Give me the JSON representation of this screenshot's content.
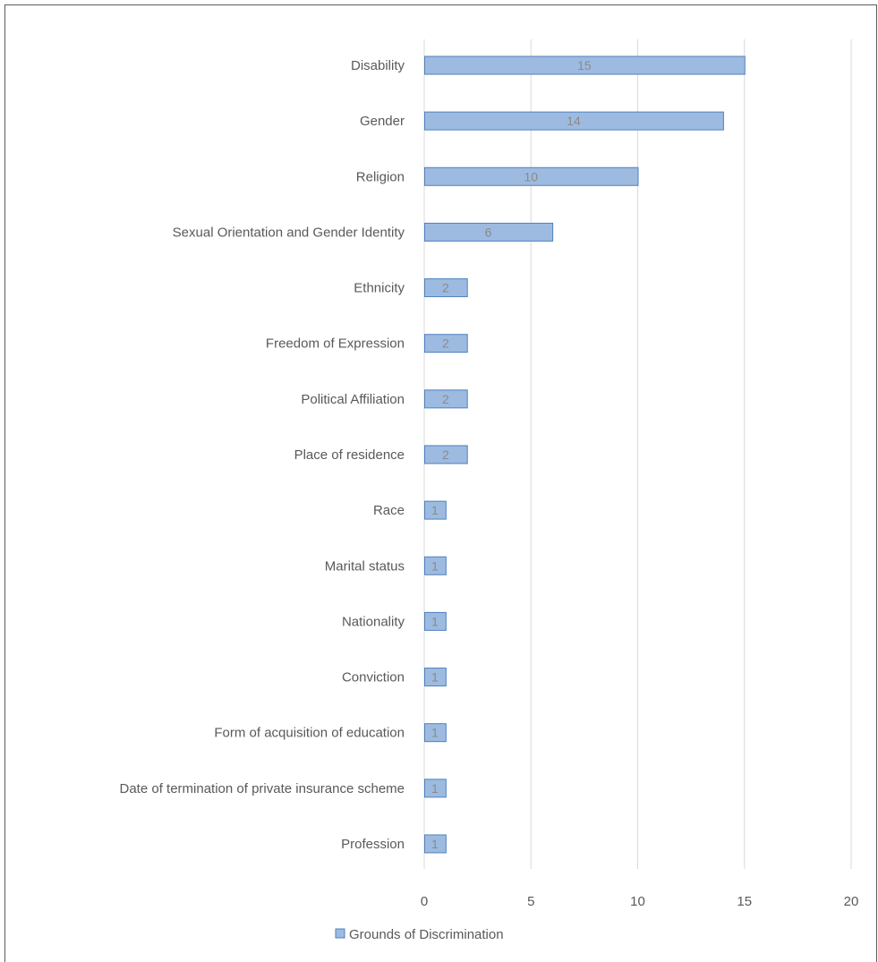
{
  "chart_data": {
    "type": "bar",
    "orientation": "horizontal",
    "categories": [
      "Disability",
      "Gender",
      "Religion",
      "Sexual Orientation and Gender Identity",
      "Ethnicity",
      "Freedom of Expression",
      "Political Affiliation",
      "Place of residence",
      "Race",
      "Marital status",
      "Nationality",
      "Conviction",
      "Form of acquisition of education",
      "Date of termination of private insurance scheme",
      "Profession"
    ],
    "series": [
      {
        "name": "Grounds of Discrimination",
        "values": [
          15,
          14,
          10,
          6,
          2,
          2,
          2,
          2,
          1,
          1,
          1,
          1,
          1,
          1,
          1
        ]
      }
    ],
    "xlim": [
      0,
      20
    ],
    "xticks": [
      0,
      5,
      10,
      15,
      20
    ],
    "grid": true,
    "data_labels": true,
    "legend_position": "bottom",
    "colors": {
      "bar_fill": "#9dbbe0",
      "bar_stroke": "#4f81bd",
      "grid": "#d9d9d9"
    }
  }
}
